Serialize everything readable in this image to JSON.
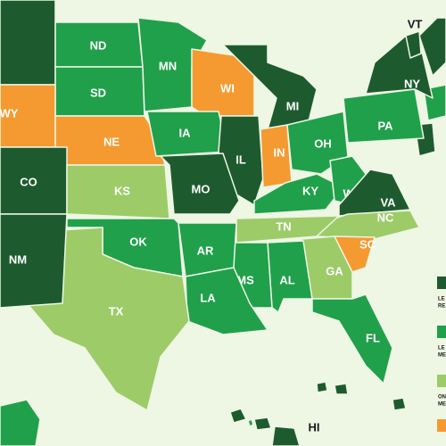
{
  "legend": [
    {
      "color": "#1d5b2f",
      "lines": [
        "LE",
        "RE"
      ]
    },
    {
      "color": "#20a04b",
      "lines": [
        "LE",
        "ME"
      ]
    },
    {
      "color": "#9ccb68",
      "lines": [
        "ON",
        "ME"
      ]
    },
    {
      "color": "#f59a30",
      "lines": []
    }
  ],
  "states": [
    {
      "label": "ND",
      "category": 1
    },
    {
      "label": "SD",
      "category": 1
    },
    {
      "label": "MN",
      "category": 1
    },
    {
      "label": "WI",
      "category": 3
    },
    {
      "label": "MI",
      "category": 0
    },
    {
      "label": "WY",
      "category": 3
    },
    {
      "label": "NE",
      "category": 3
    },
    {
      "label": "IA",
      "category": 1
    },
    {
      "label": "IL",
      "category": 0
    },
    {
      "label": "IN",
      "category": 3
    },
    {
      "label": "OH",
      "category": 1
    },
    {
      "label": "PA",
      "category": 1
    },
    {
      "label": "NY",
      "category": 0
    },
    {
      "label": "VT",
      "category": 0,
      "label_color": "#1a1a1a"
    },
    {
      "label": "CO",
      "category": 0
    },
    {
      "label": "KS",
      "category": 2
    },
    {
      "label": "MO",
      "category": 0
    },
    {
      "label": "KY",
      "category": 1
    },
    {
      "label": "WV",
      "category": 1
    },
    {
      "label": "VA",
      "category": 0
    },
    {
      "label": "NC",
      "category": 2
    },
    {
      "label": "TN",
      "category": 2
    },
    {
      "label": "SC",
      "category": 3
    },
    {
      "label": "GA",
      "category": 2
    },
    {
      "label": "AL",
      "category": 1
    },
    {
      "label": "MS",
      "category": 1
    },
    {
      "label": "AR",
      "category": 1
    },
    {
      "label": "LA",
      "category": 1
    },
    {
      "label": "OK",
      "category": 1
    },
    {
      "label": "TX",
      "category": 2
    },
    {
      "label": "NM",
      "category": 0
    },
    {
      "label": "FL",
      "category": 1
    },
    {
      "label": "HI",
      "category": 1,
      "label_color": "#1a1a1a"
    }
  ]
}
